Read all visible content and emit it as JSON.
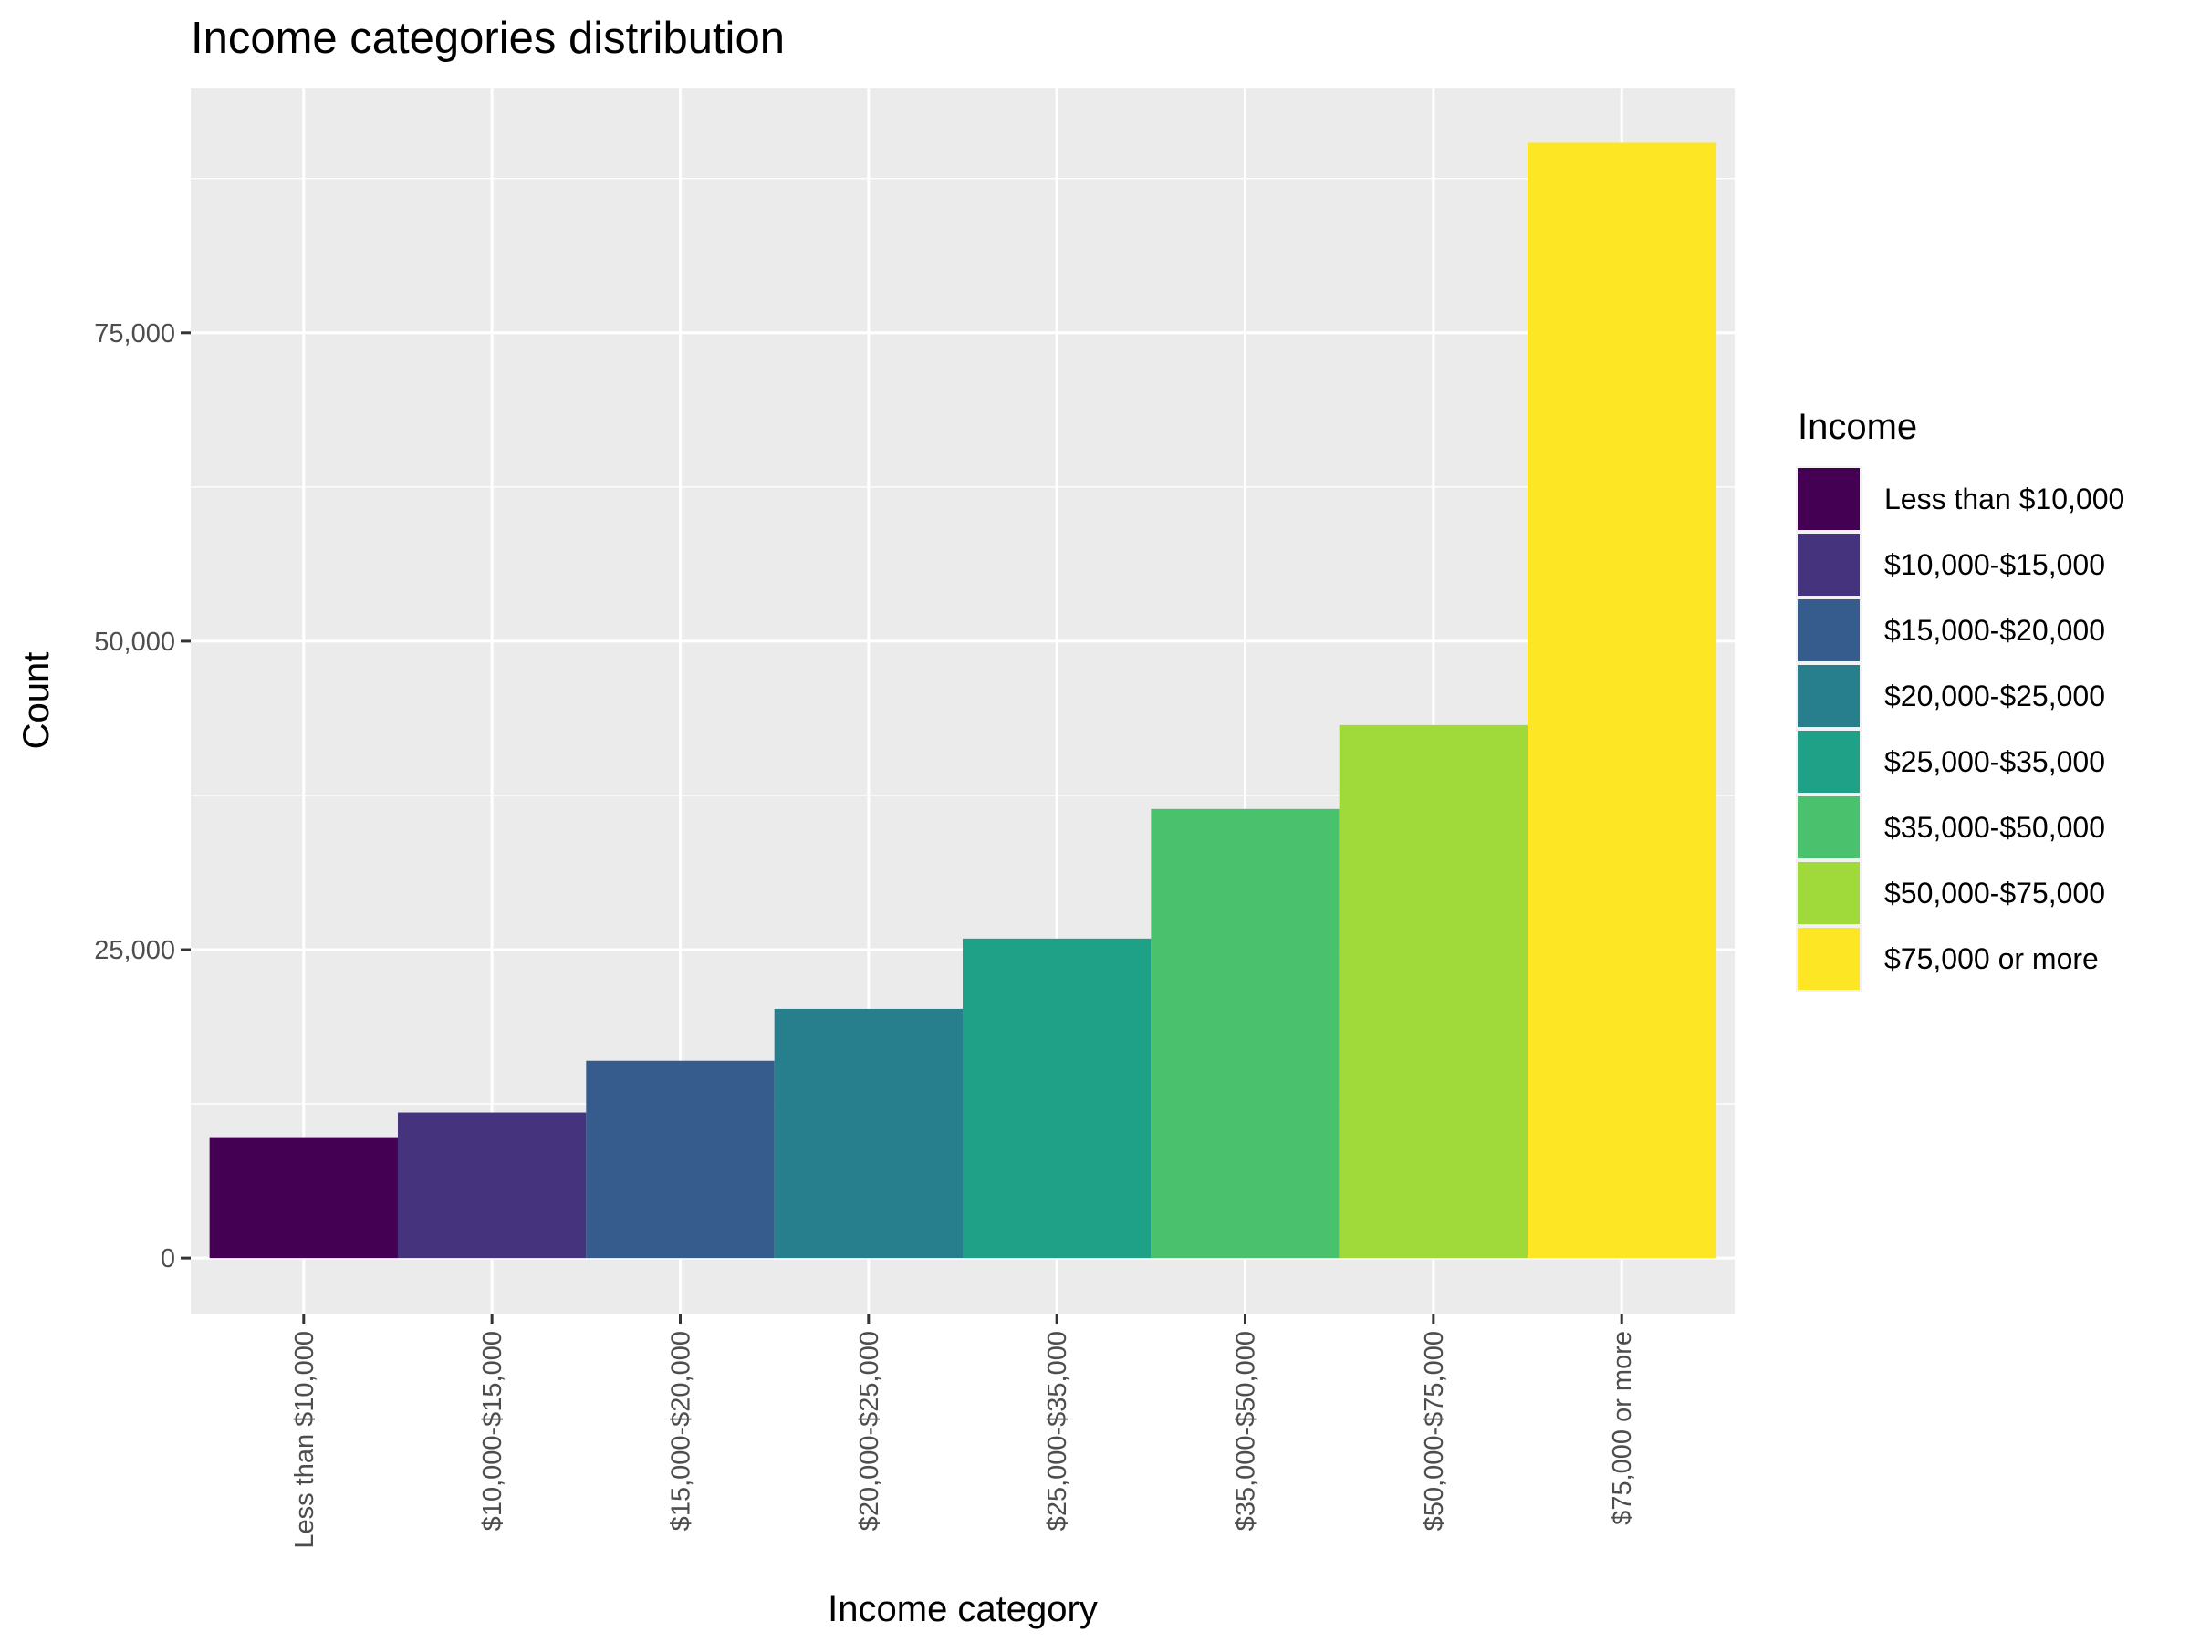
{
  "chart_data": {
    "type": "bar",
    "title": "Income categories distribution",
    "xlabel": "Income category",
    "ylabel": "Count",
    "categories": [
      "Less than $10,000",
      "$10,000-$15,000",
      "$15,000-$20,000",
      "$20,000-$25,000",
      "$25,000-$35,000",
      "$35,000-$50,000",
      "$50,000-$75,000",
      "$75,000 or more"
    ],
    "values": [
      9800,
      11800,
      16000,
      20200,
      25900,
      36400,
      43200,
      90400
    ],
    "colors": [
      "#440154",
      "#46337E",
      "#365C8D",
      "#277F8E",
      "#1FA187",
      "#4AC16D",
      "#9FDA3A",
      "#FDE725"
    ],
    "ylim": [
      -4500,
      94800
    ],
    "yticks": [
      0,
      25000,
      50000,
      75000
    ],
    "ytick_labels": [
      "0",
      "25,000",
      "50,000",
      "75,000"
    ],
    "grid": true,
    "panel_background": "#EBEBEB",
    "grid_color": "#FFFFFF",
    "legend": {
      "title": "Income",
      "position": "right",
      "items": [
        "Less than $10,000",
        "$10,000-$15,000",
        "$15,000-$20,000",
        "$20,000-$25,000",
        "$25,000-$35,000",
        "$35,000-$50,000",
        "$50,000-$75,000",
        "$75,000 or more"
      ]
    }
  }
}
